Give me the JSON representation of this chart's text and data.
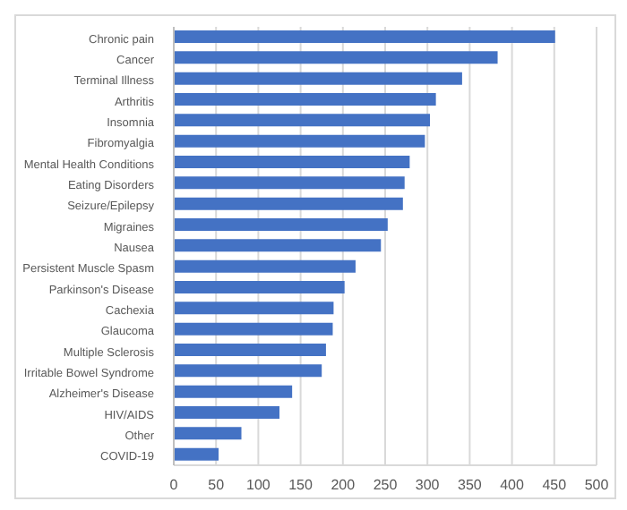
{
  "chart_data": {
    "type": "bar",
    "orientation": "horizontal",
    "categories": [
      "Chronic pain",
      "Cancer",
      "Terminal Illness",
      "Arthritis",
      "Insomnia",
      "Fibromyalgia",
      "Mental Health Conditions",
      "Eating Disorders",
      "Seizure/Epilepsy",
      "Migraines",
      "Nausea",
      "Persistent Muscle Spasm",
      "Parkinson's Disease",
      "Cachexia",
      "Glaucoma",
      "Multiple Sclerosis",
      "Irritable Bowel Syndrome",
      "Alzheimer's Disease",
      "HIV/AIDS",
      "Other",
      "COVID-19"
    ],
    "values": [
      451,
      383,
      341,
      310,
      303,
      297,
      279,
      273,
      271,
      253,
      245,
      215,
      202,
      189,
      188,
      180,
      175,
      140,
      125,
      80,
      53
    ],
    "color": "#4472c4",
    "xlim": [
      0,
      500
    ],
    "xticks": [
      0,
      50,
      100,
      150,
      200,
      250,
      300,
      350,
      400,
      450,
      500
    ],
    "grid": "x"
  }
}
